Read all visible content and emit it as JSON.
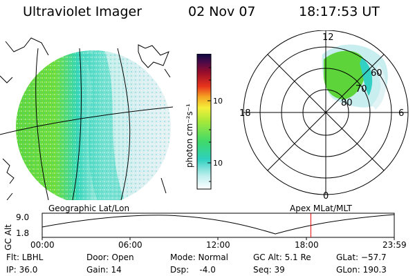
{
  "header": {
    "instrument": "Ultraviolet Imager",
    "date": "02 Nov 07",
    "time": "18:17:53 UT"
  },
  "geo_label": "Geographic Lat/Lon",
  "apex_label": "Apex MLat/MLT",
  "colorbar": {
    "unit_label": "photon cm⁻²s⁻¹",
    "tick_100": "100",
    "tick_10": "10"
  },
  "polar": {
    "mlt_12": "12",
    "mlt_18": "18",
    "mlt_6": "6",
    "mlt_0": "0",
    "lat_60": "60",
    "lat_70": "70",
    "lat_80": "80"
  },
  "orbit": {
    "axis_label": "GC Alt",
    "y_top": "9.0",
    "y_bottom": "1.8",
    "x_ticks": [
      "00:00",
      "06:00",
      "12:00",
      "18:00",
      "23:59"
    ],
    "marker_time_hours": 18.3,
    "marker_color": "#e00000"
  },
  "status": {
    "flt": "Flt: LBHL",
    "ip": "IP: 36.0",
    "door": "Door: Open",
    "gain": "Gain: 14",
    "mode": "Mode: Normal",
    "dsp": "Dsp:    -4.0",
    "gc_alt": "GC Alt: 5.1 Re",
    "seq": "Seq: 39",
    "glat": "GLat: −57.7",
    "glon": "GLon: 190.3"
  }
}
